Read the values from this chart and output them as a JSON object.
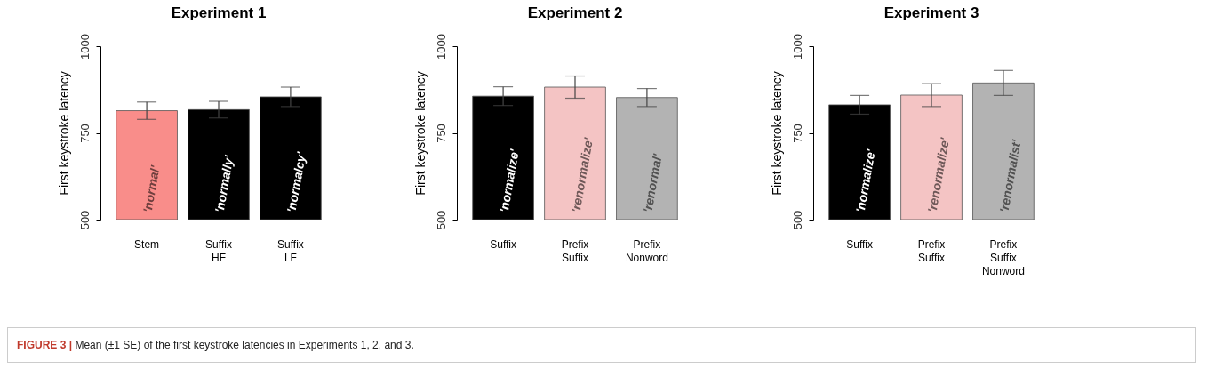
{
  "chart_data": [
    {
      "type": "bar",
      "title": "Experiment 1",
      "ylabel": "First keystroke latency",
      "categories": [
        "Stem",
        "Suffix\nHF",
        "Suffix\nLF"
      ],
      "values": [
        814,
        817,
        854
      ],
      "errors": [
        25,
        24,
        28
      ],
      "colors": [
        "#f98d8a",
        "#000000",
        "#000000"
      ],
      "ylim": [
        500,
        1000
      ],
      "yticks": [
        500,
        750,
        1000
      ],
      "grid": false,
      "annotations": [
        "'normal'",
        "'normally'",
        "'normalcy'",
        "FIGURE 3 | Mean (±1 SE) of the first keystroke latencies in Experiments 1, 2, and 3."
      ]
    },
    {
      "type": "bar",
      "title": "Experiment 2",
      "ylabel": "First keystroke latency",
      "categories": [
        "Suffix",
        "Prefix\nSuffix",
        "Prefix\nNonword"
      ],
      "values": [
        856,
        882,
        852
      ],
      "errors": [
        27,
        32,
        26
      ],
      "colors": [
        "#000000",
        "#f4c4c4",
        "#b3b3b3"
      ],
      "ylim": [
        500,
        1000
      ],
      "yticks": [
        500,
        750,
        1000
      ],
      "grid": false,
      "annotations": [
        "'normalize'",
        "'renormalize'",
        "'renormal'"
      ]
    },
    {
      "type": "bar",
      "title": "Experiment 3",
      "ylabel": "First keystroke latency",
      "categories": [
        "Suffix",
        "Prefix\nSuffix",
        "Prefix\nSuffix\nNonword"
      ],
      "values": [
        831,
        859,
        894
      ],
      "errors": [
        27,
        33,
        36
      ],
      "colors": [
        "#000000",
        "#f4c4c4",
        "#b3b3b3"
      ],
      "ylim": [
        500,
        1000
      ],
      "yticks": [
        500,
        750,
        1000
      ],
      "grid": false,
      "annotations": [
        "'normalize'",
        "'renormalize'",
        "'renormalist'"
      ]
    }
  ]
}
